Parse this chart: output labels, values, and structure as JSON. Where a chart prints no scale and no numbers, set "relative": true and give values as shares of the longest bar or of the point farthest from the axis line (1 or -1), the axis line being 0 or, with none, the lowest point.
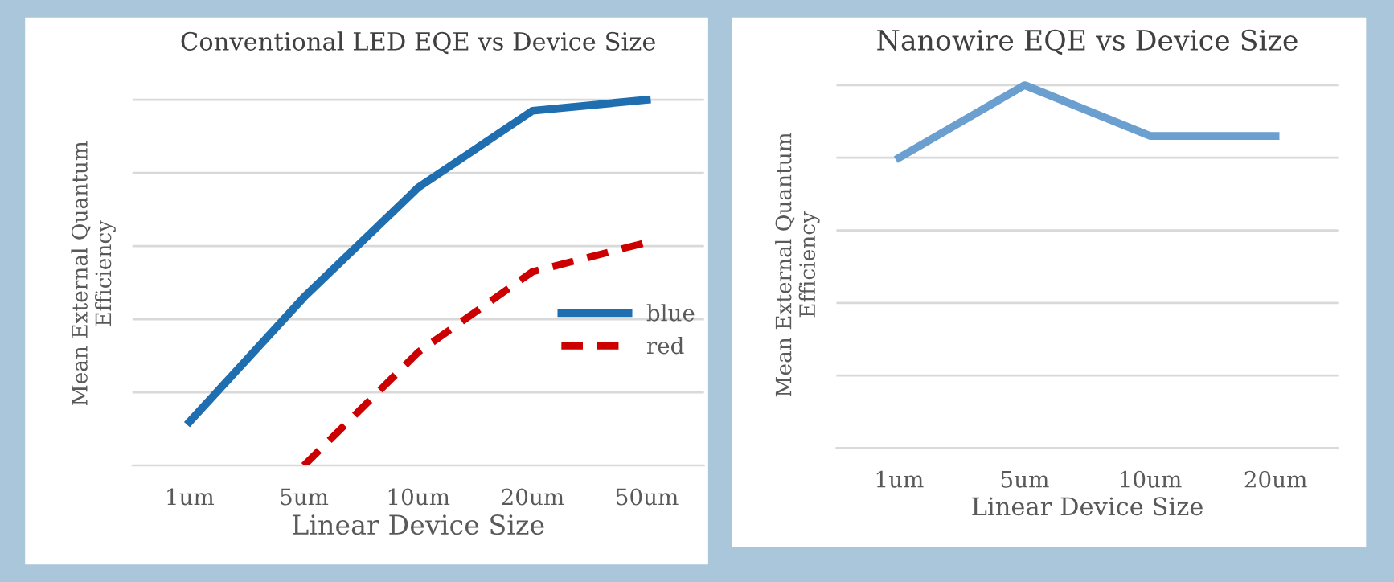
{
  "chart_data": [
    {
      "type": "line",
      "title": "Conventional LED EQE vs Device Size",
      "xlabel": "Linear Device Size",
      "ylabel": "Mean External Quantum\nEfficiency",
      "relative": true,
      "grid": "y",
      "legend": "right",
      "categories": [
        "1um",
        "5um",
        "10um",
        "20um",
        "50um"
      ],
      "series": [
        {
          "name": "blue",
          "color": "#1f6fb0",
          "line_style": "solid",
          "values": [
            0.12,
            0.46,
            0.76,
            0.97,
            1
          ]
        },
        {
          "name": "red",
          "color": "#cc0000",
          "line_style": "dashed",
          "values": [
            null,
            0,
            0.31,
            0.53,
            0.61
          ]
        }
      ]
    },
    {
      "type": "line",
      "title": "Nanowire EQE vs Device Size",
      "xlabel": "Linear Device Size",
      "ylabel": "Mean External Quantum\nEfficiency",
      "relative": true,
      "grid": "y",
      "categories": [
        "1um",
        "5um",
        "10um",
        "20um"
      ],
      "series": [
        {
          "color": "#6a9fd0",
          "values": [
            0.8,
            1,
            0.86,
            0.86
          ]
        }
      ]
    }
  ]
}
